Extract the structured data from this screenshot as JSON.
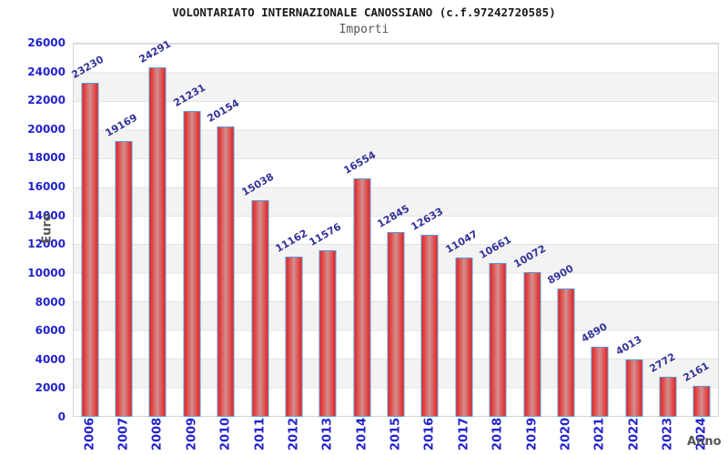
{
  "header": {
    "title": "VOLONTARIATO INTERNAZIONALE CANOSSIANO (c.f.97242720585)",
    "subtitle": "Importi"
  },
  "chart_data": {
    "type": "bar",
    "title": "VOLONTARIATO INTERNAZIONALE CANOSSIANO (c.f.97242720585)",
    "subtitle": "Importi",
    "xlabel": "Anno",
    "ylabel": "Euro",
    "categories": [
      "2006",
      "2007",
      "2008",
      "2009",
      "2010",
      "2011",
      "2012",
      "2013",
      "2014",
      "2015",
      "2016",
      "2017",
      "2018",
      "2019",
      "2020",
      "2021",
      "2022",
      "2023",
      "2024"
    ],
    "values": [
      23230,
      19169,
      24291,
      21231,
      20154,
      15038,
      11162,
      11576,
      16554,
      12845,
      12633,
      11047,
      10661,
      10072,
      8900,
      4890,
      4013,
      2772,
      2161
    ],
    "ylim": [
      0,
      26000
    ],
    "yticks": [
      0,
      2000,
      4000,
      6000,
      8000,
      10000,
      12000,
      14000,
      16000,
      18000,
      20000,
      22000,
      24000,
      26000
    ],
    "grid": "horizontal-lines-with-alternating-bands",
    "legend": "none",
    "colors": {
      "bar_edge_red": "#e32424",
      "bar_center_red": "#d29090",
      "bar_border_blue": "#5b9bd5",
      "tick_label_blue": "#2323cc",
      "value_label_navy": "#333399",
      "axis_title_gray": "#555555",
      "band_gray": "#f3f3f3",
      "gridline_gray": "#e3e3e3"
    }
  }
}
